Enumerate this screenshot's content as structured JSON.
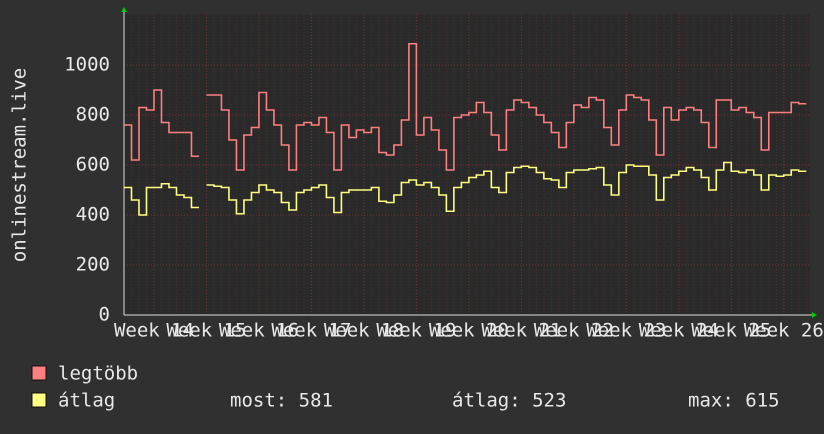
{
  "chart_data": {
    "type": "line",
    "ylabel": "onlinestream.live",
    "x": [
      0,
      1,
      2,
      3,
      4,
      5,
      6,
      7,
      8,
      9,
      10,
      11,
      12,
      13,
      14,
      15,
      16,
      17,
      18,
      19,
      20,
      21,
      22,
      23,
      24,
      25,
      26,
      27,
      28,
      29,
      30,
      31,
      32,
      33,
      34,
      35,
      36,
      37,
      38,
      39,
      40,
      41,
      42,
      43,
      44,
      45,
      46,
      47,
      48,
      49,
      50,
      51,
      52,
      53,
      54,
      55,
      56,
      57,
      58,
      59,
      60,
      61,
      62,
      63,
      64,
      65,
      66,
      67,
      68,
      69,
      70,
      71,
      72,
      73,
      74,
      75,
      76,
      77,
      78,
      79,
      80,
      81,
      82,
      83,
      84,
      85,
      86,
      87,
      88,
      89,
      90
    ],
    "xlim": [
      0,
      91.5
    ],
    "xticks": [
      {
        "value": 4,
        "label": "Week 14"
      },
      {
        "value": 11,
        "label": "Week 15"
      },
      {
        "value": 18,
        "label": "Week 16"
      },
      {
        "value": 25,
        "label": "Week 17"
      },
      {
        "value": 32,
        "label": "Week 18"
      },
      {
        "value": 39,
        "label": "Week 19"
      },
      {
        "value": 46,
        "label": "Week 20"
      },
      {
        "value": 53,
        "label": "Week 21"
      },
      {
        "value": 60,
        "label": "Week 22"
      },
      {
        "value": 67,
        "label": "Week 23"
      },
      {
        "value": 74,
        "label": "Week 24"
      },
      {
        "value": 81,
        "label": "Week 25"
      },
      {
        "value": 88,
        "label": "Week 26"
      }
    ],
    "ylim": [
      0,
      1204
    ],
    "yticks": [
      0,
      200,
      400,
      600,
      800,
      1000
    ],
    "grid": true,
    "series": [
      {
        "name": "legtöbb",
        "color": "#ff7f7f",
        "values": [
          760,
          620,
          830,
          820,
          900,
          770,
          730,
          730,
          730,
          635,
          null,
          880,
          880,
          820,
          700,
          580,
          720,
          750,
          890,
          820,
          760,
          680,
          580,
          760,
          770,
          760,
          790,
          730,
          580,
          760,
          710,
          740,
          730,
          750,
          650,
          640,
          680,
          780,
          1085,
          720,
          790,
          740,
          660,
          580,
          790,
          800,
          810,
          850,
          810,
          720,
          660,
          820,
          860,
          850,
          830,
          800,
          770,
          730,
          670,
          770,
          840,
          830,
          870,
          860,
          750,
          680,
          820,
          880,
          870,
          860,
          780,
          640,
          830,
          780,
          820,
          830,
          820,
          770,
          670,
          860,
          860,
          820,
          830,
          810,
          790,
          660,
          810,
          810,
          810,
          850,
          845
        ]
      },
      {
        "name": "átlag",
        "color": "#ffff80",
        "values": [
          510,
          460,
          400,
          510,
          510,
          525,
          510,
          480,
          470,
          430,
          null,
          520,
          515,
          510,
          460,
          405,
          460,
          490,
          520,
          500,
          490,
          450,
          420,
          490,
          500,
          510,
          520,
          470,
          410,
          490,
          500,
          500,
          500,
          510,
          455,
          450,
          480,
          530,
          540,
          520,
          530,
          510,
          480,
          415,
          510,
          530,
          550,
          560,
          575,
          510,
          490,
          570,
          590,
          595,
          590,
          570,
          545,
          540,
          510,
          570,
          580,
          580,
          585,
          590,
          520,
          480,
          570,
          600,
          595,
          595,
          560,
          460,
          550,
          560,
          575,
          590,
          580,
          550,
          500,
          580,
          610,
          575,
          570,
          580,
          560,
          500,
          560,
          555,
          560,
          580,
          575
        ]
      }
    ],
    "stats": [
      "most: 581",
      "átlag: 523",
      "max: 615"
    ]
  }
}
